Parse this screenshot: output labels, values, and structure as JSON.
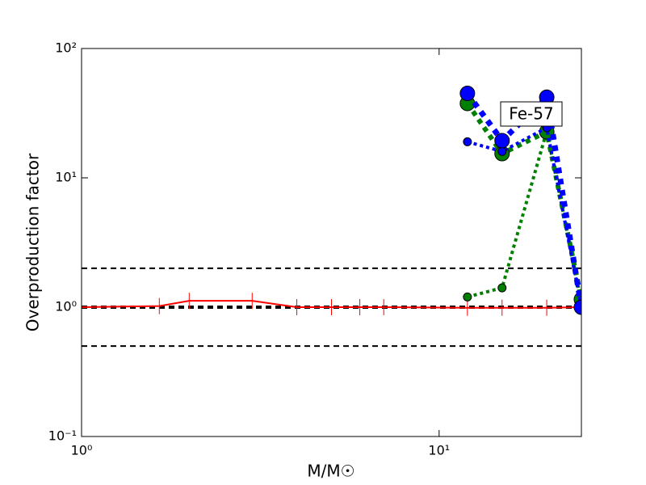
{
  "chart_data": {
    "type": "line",
    "xlabel": "M/M☉",
    "ylabel": "Overproduction factor",
    "annotation": "Fe-57",
    "xscale": "log",
    "yscale": "log",
    "xlim": [
      1,
      25
    ],
    "ylim": [
      0.1,
      100
    ],
    "xticks": [
      {
        "value": 1,
        "label": "10⁰"
      },
      {
        "value": 10,
        "label": "10¹"
      }
    ],
    "yticks": [
      {
        "value": 0.1,
        "label": "10⁻¹"
      },
      {
        "value": 1,
        "label": "10⁰"
      },
      {
        "value": 10,
        "label": "10¹"
      },
      {
        "value": 100,
        "label": "10²"
      }
    ],
    "hlines": [
      {
        "value": 2,
        "color": "#000000",
        "width": 2
      },
      {
        "value": 1,
        "color": "#000000",
        "width": 4
      },
      {
        "value": 0.5,
        "color": "#000000",
        "width": 2
      }
    ],
    "series": [
      {
        "color": "#ff0000",
        "linestyle": "solid",
        "width": 2,
        "marker": "vline",
        "x": [
          1,
          1.65,
          2,
          3,
          4,
          5,
          6,
          7,
          12,
          15,
          20,
          25
        ],
        "values": [
          1,
          1.02,
          1.12,
          1.12,
          1.0,
          1.0,
          1.0,
          1.0,
          0.99,
          0.99,
          0.99,
          1.0
        ]
      },
      {
        "color": "#008000",
        "linestyle": "dotted",
        "width": 4,
        "marker": "circle",
        "marker_size": 5,
        "x": [
          12,
          15,
          20,
          25
        ],
        "values": [
          1.2,
          1.41,
          23,
          1.1
        ]
      },
      {
        "color": "#008000",
        "linestyle": "dotted",
        "width": 6,
        "marker": "circle",
        "marker_size": 9,
        "x": [
          12,
          15,
          20,
          25
        ],
        "values": [
          37.6,
          15.4,
          22.7,
          1.15
        ]
      },
      {
        "color": "#0000ff",
        "linestyle": "dotted",
        "width": 4,
        "marker": "circle",
        "marker_size": 5,
        "x": [
          12,
          15,
          20,
          25
        ],
        "values": [
          19,
          16,
          24.4,
          1.0
        ]
      },
      {
        "color": "#0000ff",
        "linestyle": "dotted",
        "width": 7,
        "marker": "circle",
        "marker_size": 9,
        "x": [
          12,
          15,
          20,
          25
        ],
        "values": [
          45,
          19.4,
          42,
          1.0
        ]
      }
    ]
  }
}
